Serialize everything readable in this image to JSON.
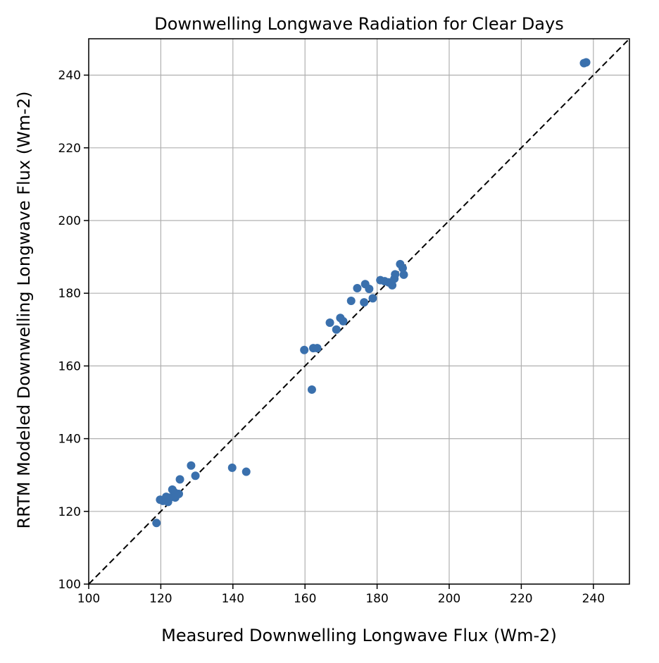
{
  "chart_data": {
    "type": "scatter",
    "title": "Downwelling Longwave Radiation for Clear Days",
    "xlabel": "Measured Downwelling Longwave Flux (Wm-2)",
    "ylabel": "RRTM Modeled Downwelling Longwave Flux (Wm-2)",
    "xlim": [
      100,
      250
    ],
    "ylim": [
      100,
      250
    ],
    "xticks": [
      100,
      120,
      140,
      160,
      180,
      200,
      220,
      240
    ],
    "yticks": [
      100,
      120,
      140,
      160,
      180,
      200,
      220,
      240
    ],
    "x_tick_labels": [
      "100",
      "120",
      "140",
      "160",
      "180",
      "200",
      "220",
      "240"
    ],
    "y_tick_labels": [
      "100",
      "120",
      "140",
      "160",
      "180",
      "200",
      "220",
      "240"
    ],
    "grid": true,
    "reference_line": {
      "style": "dashed",
      "color": "#000000",
      "from": [
        100,
        100
      ],
      "to": [
        250,
        250
      ]
    },
    "marker_color": "#3a70ad",
    "points": [
      {
        "x": 118.8,
        "y": 116.8
      },
      {
        "x": 119.8,
        "y": 123.2
      },
      {
        "x": 120.6,
        "y": 122.9
      },
      {
        "x": 121.5,
        "y": 124.0
      },
      {
        "x": 122.0,
        "y": 122.6
      },
      {
        "x": 122.6,
        "y": 123.8
      },
      {
        "x": 123.2,
        "y": 126.0
      },
      {
        "x": 123.8,
        "y": 125.2
      },
      {
        "x": 124.0,
        "y": 123.8
      },
      {
        "x": 125.0,
        "y": 124.8
      },
      {
        "x": 125.3,
        "y": 128.8
      },
      {
        "x": 128.4,
        "y": 132.6
      },
      {
        "x": 129.6,
        "y": 129.8
      },
      {
        "x": 139.8,
        "y": 132.0
      },
      {
        "x": 143.7,
        "y": 130.9
      },
      {
        "x": 159.8,
        "y": 164.4
      },
      {
        "x": 161.9,
        "y": 153.5
      },
      {
        "x": 162.3,
        "y": 164.9
      },
      {
        "x": 163.4,
        "y": 164.9
      },
      {
        "x": 166.9,
        "y": 171.9
      },
      {
        "x": 168.7,
        "y": 170.0
      },
      {
        "x": 169.8,
        "y": 173.2
      },
      {
        "x": 170.6,
        "y": 172.3
      },
      {
        "x": 172.8,
        "y": 177.9
      },
      {
        "x": 174.5,
        "y": 181.4
      },
      {
        "x": 176.4,
        "y": 177.5
      },
      {
        "x": 176.7,
        "y": 182.5
      },
      {
        "x": 177.8,
        "y": 181.2
      },
      {
        "x": 178.8,
        "y": 178.6
      },
      {
        "x": 180.9,
        "y": 183.6
      },
      {
        "x": 182.1,
        "y": 183.3
      },
      {
        "x": 183.2,
        "y": 183.0
      },
      {
        "x": 184.2,
        "y": 182.2
      },
      {
        "x": 184.8,
        "y": 184.0
      },
      {
        "x": 185.0,
        "y": 185.2
      },
      {
        "x": 186.4,
        "y": 188.0
      },
      {
        "x": 187.4,
        "y": 185.1
      },
      {
        "x": 187.1,
        "y": 186.9
      },
      {
        "x": 237.4,
        "y": 243.3
      },
      {
        "x": 238.0,
        "y": 243.5
      }
    ]
  }
}
